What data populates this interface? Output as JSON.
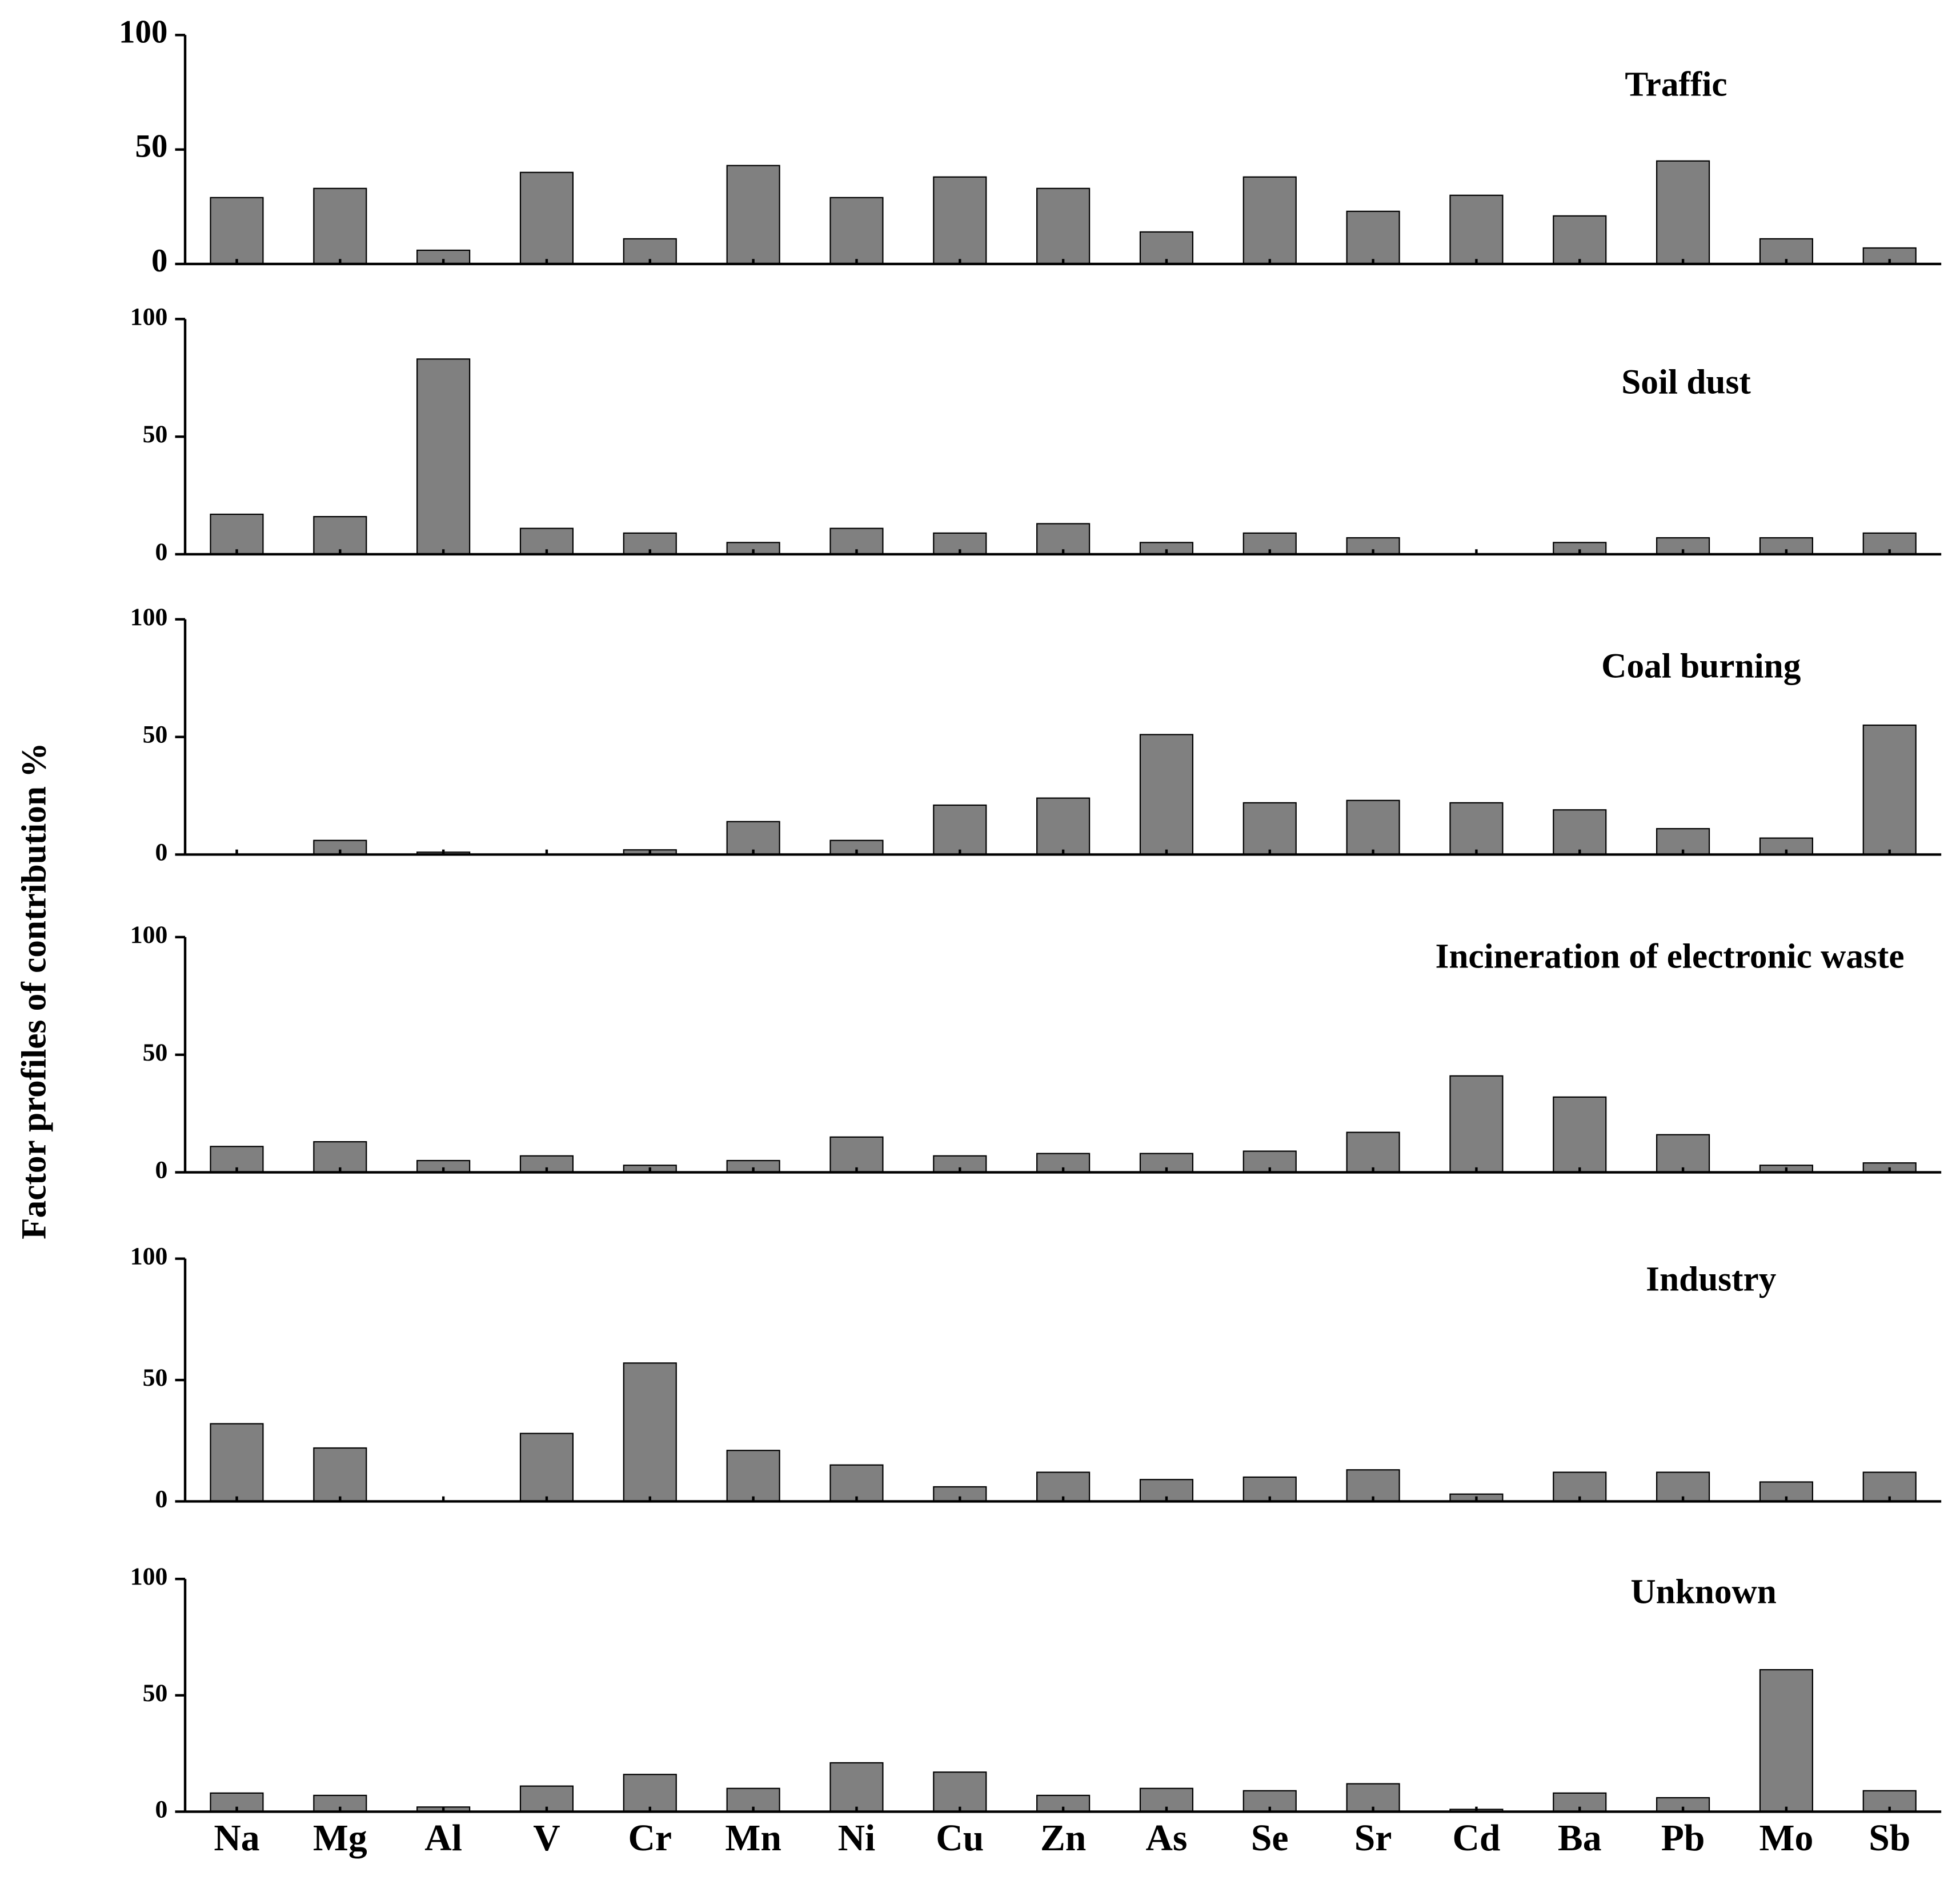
{
  "ylabel": "Factor profiles  of contribution  %",
  "categories": [
    "Na",
    "Mg",
    "Al",
    "V",
    "Cr",
    "Mn",
    "Ni",
    "Cu",
    "Zn",
    "As",
    "Se",
    "Sr",
    "Cd",
    "Ba",
    "Pb",
    "Mo",
    "Sb"
  ],
  "chart_data": [
    {
      "type": "bar",
      "title": "Traffic",
      "color": "#808080",
      "ylim": [
        0,
        100
      ],
      "yticks": [
        0,
        50,
        100
      ],
      "values": [
        29,
        33,
        6,
        40,
        11,
        43,
        29,
        38,
        33,
        14,
        38,
        23,
        30,
        21,
        45,
        11,
        7
      ]
    },
    {
      "type": "bar",
      "title": "Soil dust",
      "color": "#808080",
      "ylim": [
        0,
        100
      ],
      "yticks": [
        0,
        50,
        100
      ],
      "values": [
        17,
        16,
        83,
        11,
        9,
        5,
        11,
        9,
        13,
        5,
        9,
        7,
        0,
        5,
        7,
        7,
        9
      ]
    },
    {
      "type": "bar",
      "title": "Coal burning",
      "color": "#808080",
      "ylim": [
        0,
        100
      ],
      "yticks": [
        0,
        50,
        100
      ],
      "values": [
        0,
        6,
        1,
        0,
        2,
        14,
        6,
        21,
        24,
        51,
        22,
        23,
        22,
        19,
        11,
        7,
        55
      ]
    },
    {
      "type": "bar",
      "title": "Incineration of electronic waste",
      "color": "#808080",
      "ylim": [
        0,
        100
      ],
      "yticks": [
        0,
        50,
        100
      ],
      "values": [
        11,
        13,
        5,
        7,
        3,
        5,
        15,
        7,
        8,
        8,
        9,
        17,
        41,
        32,
        16,
        3,
        4
      ]
    },
    {
      "type": "bar",
      "title": "Industry",
      "color": "#808080",
      "ylim": [
        0,
        100
      ],
      "yticks": [
        0,
        50,
        100
      ],
      "values": [
        32,
        22,
        0,
        28,
        57,
        21,
        15,
        6,
        12,
        9,
        10,
        13,
        3,
        12,
        12,
        8,
        12
      ]
    },
    {
      "type": "bar",
      "title": "Unknown",
      "color": "#808080",
      "ylim": [
        0,
        100
      ],
      "yticks": [
        0,
        50,
        100
      ],
      "values": [
        8,
        7,
        2,
        11,
        16,
        10,
        21,
        17,
        7,
        10,
        9,
        12,
        1,
        8,
        6,
        61,
        9
      ]
    }
  ]
}
